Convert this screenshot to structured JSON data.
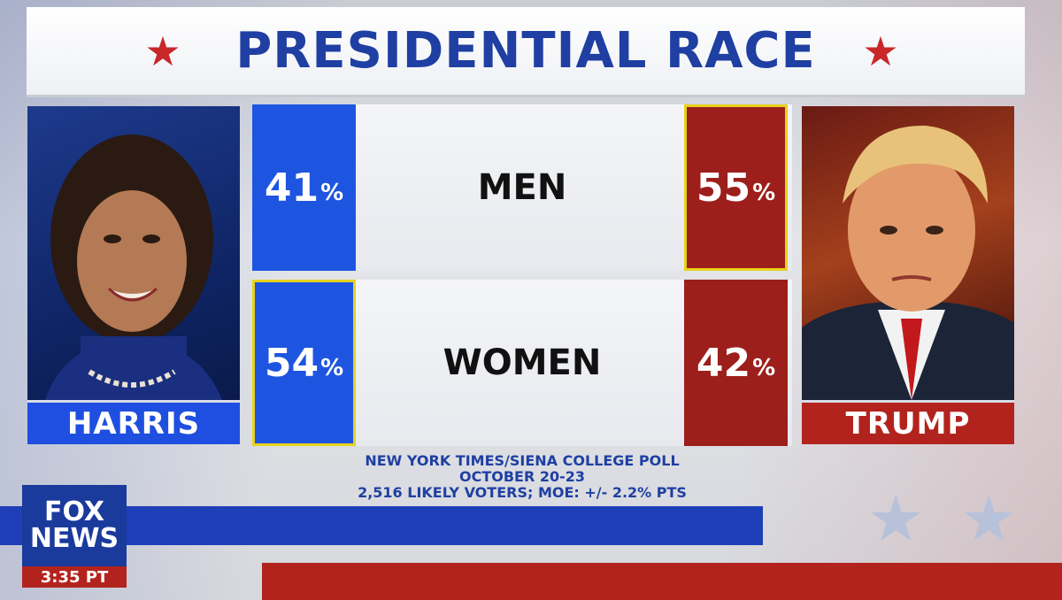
{
  "title": "PRESIDENTIAL RACE",
  "colors": {
    "title_blue": "#1f3fa2",
    "dem_blue": "#1e55e0",
    "rep_red": "#9c1f1b",
    "highlight": "#e8d21d"
  },
  "candidates": {
    "left": {
      "name": "HARRIS"
    },
    "right": {
      "name": "TRUMP"
    }
  },
  "rows": [
    {
      "label": "MEN",
      "left_pct": "41",
      "right_pct": "55",
      "leader": "right"
    },
    {
      "label": "WOMEN",
      "left_pct": "54",
      "right_pct": "42",
      "leader": "left"
    }
  ],
  "percent_symbol": "%",
  "source": {
    "line1": "NEW YORK TIMES/SIENA COLLEGE POLL",
    "line2": "OCTOBER 20-23",
    "line3": "2,516 LIKELY VOTERS; MOE: +/- 2.2% PTS"
  },
  "network": {
    "logo_line1": "FOX",
    "logo_line2": "NEWS",
    "time": "3:35 PT"
  },
  "icons": [
    "star-icon",
    "harris-photo",
    "trump-photo",
    "fox-news-logo"
  ]
}
